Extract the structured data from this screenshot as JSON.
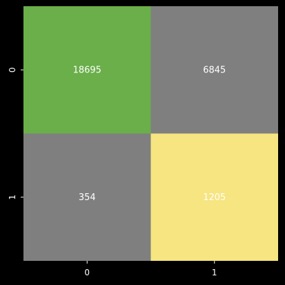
{
  "chart_data": {
    "type": "heatmap",
    "title": "",
    "xlabel": "",
    "ylabel": "",
    "x_categories": [
      "0",
      "1"
    ],
    "y_categories": [
      "0",
      "1"
    ],
    "values": [
      [
        18695,
        6845
      ],
      [
        354,
        1205
      ]
    ],
    "cell_colors": [
      [
        "#6aaf4a",
        "#7f7f7f"
      ],
      [
        "#7f7f7f",
        "#f6e580"
      ]
    ],
    "background_color": "#000000",
    "text_color": "#ffffff",
    "grid": false,
    "colorbar": false
  }
}
